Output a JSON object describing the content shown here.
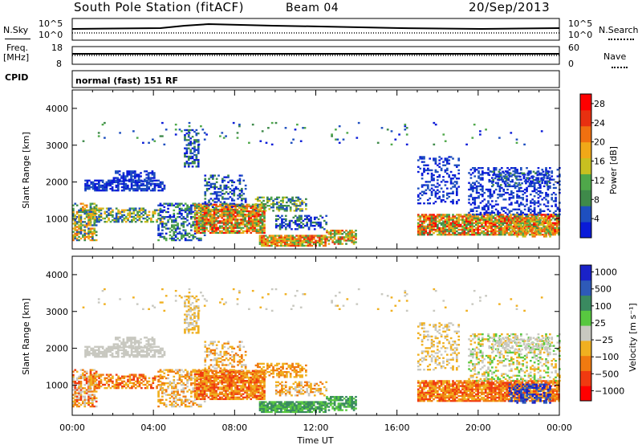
{
  "header": {
    "station": "South Pole Station (fitACF)",
    "beam": "Beam 04",
    "date": "20/Sep/2013"
  },
  "noise_panel": {
    "left_label": "N.Sky",
    "right_label": "N.Search",
    "tick_top": "10^5",
    "tick_bottom": "10^0"
  },
  "freq_panel": {
    "left_label_1": "Freq.",
    "left_label_2": "[MHz]",
    "right_label": "Nave",
    "left_ticks": [
      "18",
      "8"
    ],
    "right_ticks": [
      "60",
      "0"
    ]
  },
  "cpid": {
    "label": "CPID",
    "value": "normal (fast) 151 RF"
  },
  "colors": {
    "power": [
      "#0a1bd8",
      "#1e4fbf",
      "#3f8a4a",
      "#4fa84a",
      "#c8c020",
      "#f0a818",
      "#f07010",
      "#e83010",
      "#ff0000"
    ],
    "velocity": [
      "#ff0000",
      "#f03a10",
      "#f07a10",
      "#f0b020",
      "#c8c8c0",
      "#58c840",
      "#3a8a60",
      "#2e5ab8",
      "#1a22c8"
    ]
  },
  "chart_data": [
    {
      "type": "heatmap",
      "title": "",
      "ylabel": "Slant Range [km]",
      "xlabel": "",
      "ylim": [
        180,
        4500
      ],
      "xlim": [
        0,
        24
      ],
      "yticks": [
        "1000",
        "2000",
        "3000",
        "4000"
      ],
      "colorbar": {
        "label": "Power [dB]",
        "ticks": [
          "4",
          "8",
          "12",
          "16",
          "20",
          "24",
          "28"
        ],
        "range": [
          0,
          30
        ]
      }
    },
    {
      "type": "heatmap",
      "title": "",
      "ylabel": "Slant Range [km]",
      "xlabel": "Time UT",
      "ylim": [
        180,
        4500
      ],
      "xlim": [
        0,
        24
      ],
      "yticks": [
        "1000",
        "2000",
        "3000",
        "4000"
      ],
      "xticks": [
        "00:00",
        "04:00",
        "08:00",
        "12:00",
        "16:00",
        "20:00",
        "00:00"
      ],
      "colorbar": {
        "label": "Velocity [m s⁻¹]",
        "ticks": [
          "1000",
          "500",
          "100",
          "25",
          "−25",
          "−100",
          "−500",
          "−1000"
        ]
      }
    }
  ]
}
